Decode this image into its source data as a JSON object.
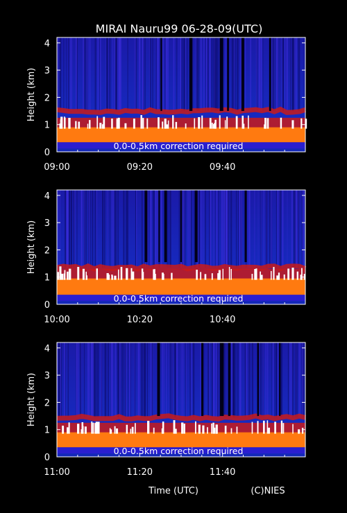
{
  "title": "MIRAI Nauru99 06-28-09(UTC)",
  "footer": {
    "xlabel": "Time (UTC)",
    "credit": "(C)NIES"
  },
  "chart_data": [
    {
      "type": "heatmap",
      "ylabel": "Height (km)",
      "yticks": [
        "0",
        "1",
        "2",
        "3",
        "4"
      ],
      "ylim": [
        0,
        4.2
      ],
      "xticks": [
        "09:00",
        "09:20",
        "09:40"
      ],
      "xlim_minutes": [
        0,
        60
      ],
      "annotation": "0.0-0.5km correction required",
      "layers": {
        "boundary_layer_top_km": 0.9,
        "cloud_base_km": 1.5
      },
      "colors": {
        "background": "#1428b8",
        "low_signal": "#2a1ed0",
        "layer": "#c81a1a",
        "strong": "#ff7a10",
        "saturated": "#ffffff"
      }
    },
    {
      "type": "heatmap",
      "ylabel": "Height (km)",
      "yticks": [
        "0",
        "1",
        "2",
        "3",
        "4"
      ],
      "ylim": [
        0,
        4.2
      ],
      "xticks": [
        "10:00",
        "10:20",
        "10:40"
      ],
      "xlim_minutes": [
        0,
        60
      ],
      "annotation": "0.0-0.5km correction required",
      "layers": {
        "boundary_layer_top_km": 0.95,
        "cloud_base_km": 1.35
      },
      "colors": {
        "background": "#1428b8",
        "low_signal": "#2a1ed0",
        "layer": "#c81a1a",
        "strong": "#ff7a10",
        "saturated": "#ffffff"
      }
    },
    {
      "type": "heatmap",
      "ylabel": "Height (km)",
      "yticks": [
        "0",
        "1",
        "2",
        "3",
        "4"
      ],
      "ylim": [
        0,
        4.2
      ],
      "xticks": [
        "11:00",
        "11:20",
        "11:40"
      ],
      "xlim_minutes": [
        0,
        60
      ],
      "annotation": "0.0-0.5km correction required",
      "layers": {
        "boundary_layer_top_km": 0.9,
        "cloud_base_km": 1.45
      },
      "colors": {
        "background": "#1428b8",
        "low_signal": "#2a1ed0",
        "layer": "#c81a1a",
        "strong": "#ff7a10",
        "saturated": "#ffffff"
      }
    }
  ]
}
